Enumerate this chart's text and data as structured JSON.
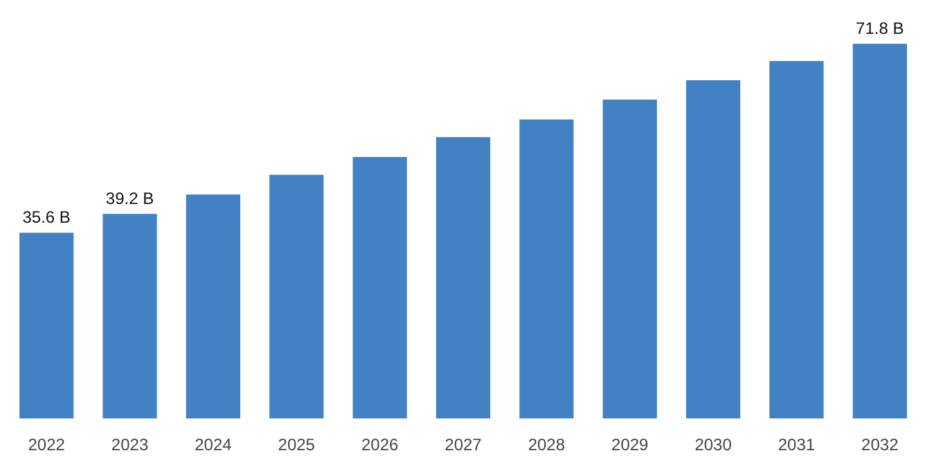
{
  "chart_data": {
    "type": "bar",
    "categories": [
      "2022",
      "2023",
      "2024",
      "2025",
      "2026",
      "2027",
      "2028",
      "2029",
      "2030",
      "2031",
      "2032"
    ],
    "values": [
      35.6,
      39.2,
      42.9,
      46.7,
      50.1,
      53.9,
      57.3,
      61.1,
      64.8,
      68.5,
      71.8
    ],
    "value_labels": [
      "35.6 B",
      "39.2 B",
      null,
      null,
      null,
      null,
      null,
      null,
      null,
      null,
      "71.8 B"
    ],
    "color": "#4181c4",
    "grid": false
  }
}
